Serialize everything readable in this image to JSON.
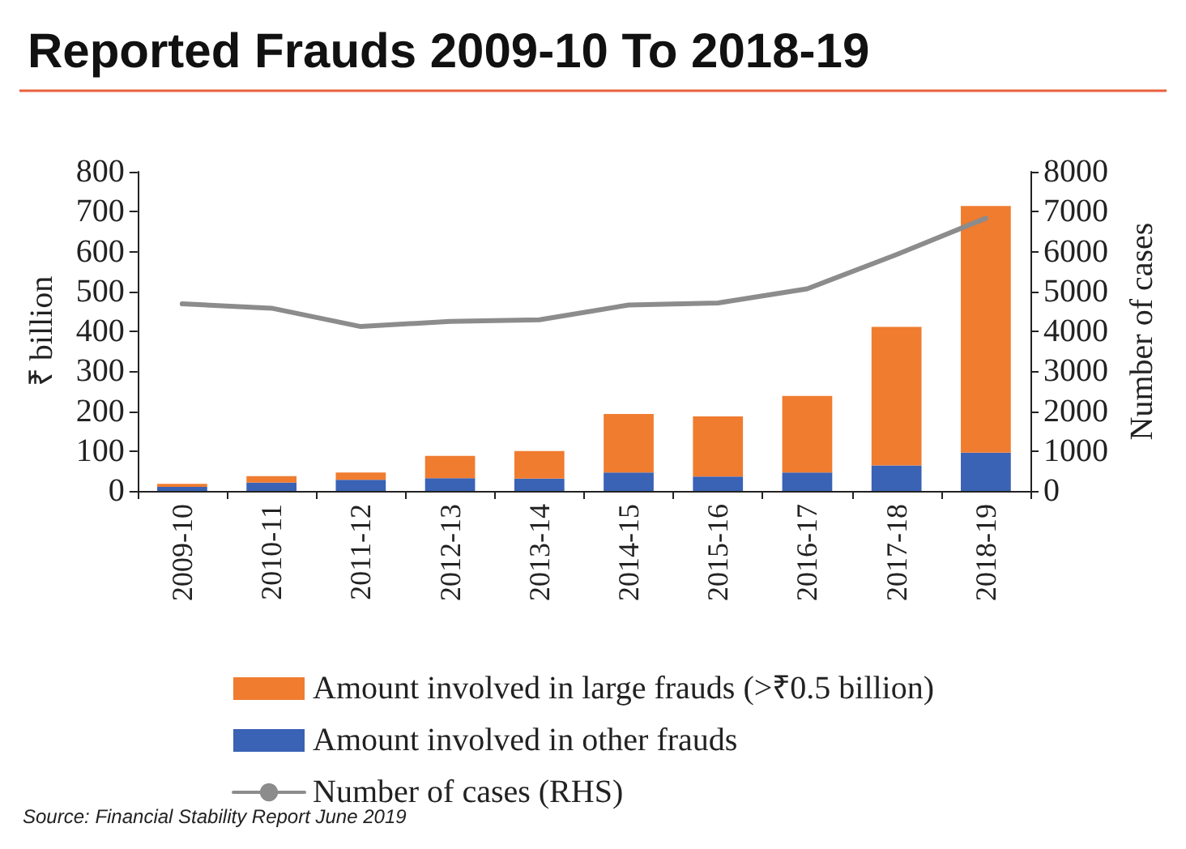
{
  "chart_data": {
    "type": "bar",
    "title": "Reported Frauds 2009-10 To 2018-19",
    "ylabel": "₹ billion",
    "y2label": "Number of cases",
    "categories": [
      "2009-10",
      "2010-11",
      "2011-12",
      "2012-13",
      "2013-14",
      "2014-15",
      "2015-16",
      "2016-17",
      "2017-18",
      "2018-19"
    ],
    "stacked": true,
    "series": [
      {
        "name": "Amount involved in other frauds",
        "color": "#3a62b5",
        "values": [
          10,
          21,
          28,
          32,
          31,
          46,
          36,
          46,
          64,
          96
        ]
      },
      {
        "name": "Amount involved in large frauds (>₹0.5 billion)",
        "color": "#f07c30",
        "values": [
          8,
          16,
          18,
          56,
          69,
          147,
          151,
          192,
          347,
          618
        ]
      },
      {
        "name": "Number of cases (RHS)",
        "type": "line",
        "axis": "y2",
        "color": "#8c8c8c",
        "values": [
          4690,
          4580,
          4120,
          4250,
          4290,
          4660,
          4710,
          5065,
          5925,
          6835
        ]
      }
    ],
    "ylim": [
      0,
      800
    ],
    "yticks": [
      0,
      100,
      200,
      300,
      400,
      500,
      600,
      700,
      800
    ],
    "y2lim": [
      0,
      8000
    ],
    "y2ticks": [
      0,
      1000,
      2000,
      3000,
      4000,
      5000,
      6000,
      7000,
      8000
    ],
    "grid": false,
    "legend": "bottom",
    "marker": "none",
    "line_style": "solid",
    "annotations": [
      "Source: Financial Stability Report June 2019"
    ]
  }
}
